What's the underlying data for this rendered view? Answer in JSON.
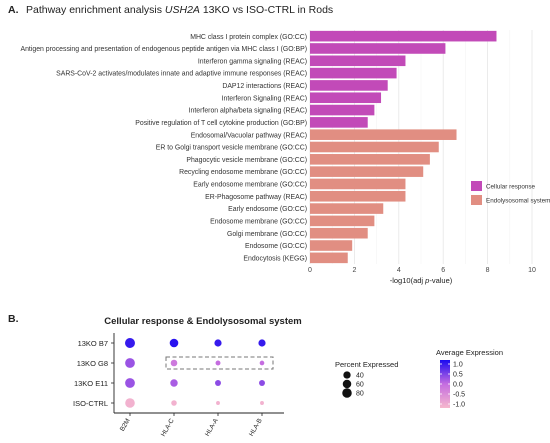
{
  "panel_a": {
    "letter": "A.",
    "title_pre": "Pathway enrichment analysis ",
    "title_gene": "USH2A",
    "title_post": " 13KO vs ISO-CTRL in Rods"
  },
  "panel_b": {
    "letter": "B."
  },
  "colors": {
    "cellular": "#c24ab8",
    "endolysosomal": "#e18e82",
    "dot_high": "#1a0af0",
    "dot_mid": "#c56de0",
    "dot_low": "#f6b8cd"
  },
  "chart_data": [
    {
      "type": "bar",
      "orientation": "horizontal",
      "xlabel_pre": "-log10(adj ",
      "xlabel_italic": "p",
      "xlabel_post": "-value)",
      "xlim": [
        0,
        10
      ],
      "xticks": [
        0,
        2,
        4,
        6,
        8,
        10
      ],
      "grid": true,
      "legend_position": "right",
      "series": [
        {
          "name": "Cellular response",
          "color_key": "cellular"
        },
        {
          "name": "Endolysosomal system",
          "color_key": "endolysosomal"
        }
      ],
      "bars": [
        {
          "label": "MHC class I protein complex (GO:CC)",
          "value": 8.4,
          "series": 0
        },
        {
          "label": "Antigen processing and presentation of endogenous peptide antigen via MHC class I (GO:BP)",
          "value": 6.1,
          "series": 0
        },
        {
          "label": "Interferon gamma signaling (REAC)",
          "value": 4.3,
          "series": 0
        },
        {
          "label": "SARS-CoV-2 activates/modulates innate and adaptive immune responses (REAC)",
          "value": 3.9,
          "series": 0
        },
        {
          "label": "DAP12 interactions (REAC)",
          "value": 3.5,
          "series": 0
        },
        {
          "label": "Interferon Signaling (REAC)",
          "value": 3.2,
          "series": 0
        },
        {
          "label": "Interferon alpha/beta signaling (REAC)",
          "value": 2.9,
          "series": 0
        },
        {
          "label": "Positive regulation of T cell cytokine production (GO:BP)",
          "value": 2.6,
          "series": 0
        },
        {
          "label": "Endosomal/Vacuolar pathway (REAC)",
          "value": 6.6,
          "series": 1
        },
        {
          "label": "ER to Golgi transport vesicle membrane (GO:CC)",
          "value": 5.8,
          "series": 1
        },
        {
          "label": "Phagocytic vesicle membrane (GO:CC)",
          "value": 5.4,
          "series": 1
        },
        {
          "label": "Recycling endosome membrane (GO:CC)",
          "value": 5.1,
          "series": 1
        },
        {
          "label": "Early endosome membrane (GO:CC)",
          "value": 4.3,
          "series": 1
        },
        {
          "label": "ER-Phagosome pathway (REAC)",
          "value": 4.3,
          "series": 1
        },
        {
          "label": "Early endosome (GO:CC)",
          "value": 3.3,
          "series": 1
        },
        {
          "label": "Endosome membrane (GO:CC)",
          "value": 2.9,
          "series": 1
        },
        {
          "label": "Golgi membrane (GO:CC)",
          "value": 2.6,
          "series": 1
        },
        {
          "label": "Endosome (GO:CC)",
          "value": 1.9,
          "series": 1
        },
        {
          "label": "Endocytosis (KEGG)",
          "value": 1.7,
          "series": 1
        }
      ]
    },
    {
      "type": "dot",
      "title": "Cellular response & Endolysosomal system",
      "x_categories": [
        "B2M",
        "HLA-C",
        "HLA-A",
        "HLA-B"
      ],
      "y_categories": [
        "13KO B7",
        "13KO G8",
        "13KO E11",
        "ISO-CTRL"
      ],
      "size_legend_title": "Percent Expressed",
      "size_legend_values": [
        40,
        60,
        80
      ],
      "color_legend_title": "Average Expression",
      "color_legend_ticks": [
        "1.0",
        "0.5",
        "0.0",
        "-0.5",
        "-1.0"
      ],
      "color_range": [
        -1.2,
        1.2
      ],
      "highlight_row": "13KO G8",
      "highlight_columns": [
        "HLA-C",
        "HLA-A",
        "HLA-B"
      ],
      "points": [
        {
          "gene": "B2M",
          "sample": "13KO B7",
          "pct": 90,
          "avg": 1.0
        },
        {
          "gene": "HLA-C",
          "sample": "13KO B7",
          "pct": 62,
          "avg": 1.1
        },
        {
          "gene": "HLA-A",
          "sample": "13KO B7",
          "pct": 38,
          "avg": 1.0
        },
        {
          "gene": "HLA-B",
          "sample": "13KO B7",
          "pct": 38,
          "avg": 1.0
        },
        {
          "gene": "B2M",
          "sample": "13KO G8",
          "pct": 85,
          "avg": 0.3
        },
        {
          "gene": "HLA-C",
          "sample": "13KO G8",
          "pct": 30,
          "avg": -0.2
        },
        {
          "gene": "HLA-A",
          "sample": "13KO G8",
          "pct": 12,
          "avg": 0.0
        },
        {
          "gene": "HLA-B",
          "sample": "13KO G8",
          "pct": 10,
          "avg": 0.0
        },
        {
          "gene": "B2M",
          "sample": "13KO E11",
          "pct": 85,
          "avg": 0.3
        },
        {
          "gene": "HLA-C",
          "sample": "13KO E11",
          "pct": 42,
          "avg": 0.2
        },
        {
          "gene": "HLA-A",
          "sample": "13KO E11",
          "pct": 22,
          "avg": 0.4
        },
        {
          "gene": "HLA-B",
          "sample": "13KO E11",
          "pct": 22,
          "avg": 0.4
        },
        {
          "gene": "B2M",
          "sample": "ISO-CTRL",
          "pct": 82,
          "avg": -1.1
        },
        {
          "gene": "HLA-C",
          "sample": "ISO-CTRL",
          "pct": 18,
          "avg": -1.1
        },
        {
          "gene": "HLA-A",
          "sample": "ISO-CTRL",
          "pct": 5,
          "avg": -1.1
        },
        {
          "gene": "HLA-B",
          "sample": "ISO-CTRL",
          "pct": 5,
          "avg": -1.1
        }
      ]
    }
  ]
}
